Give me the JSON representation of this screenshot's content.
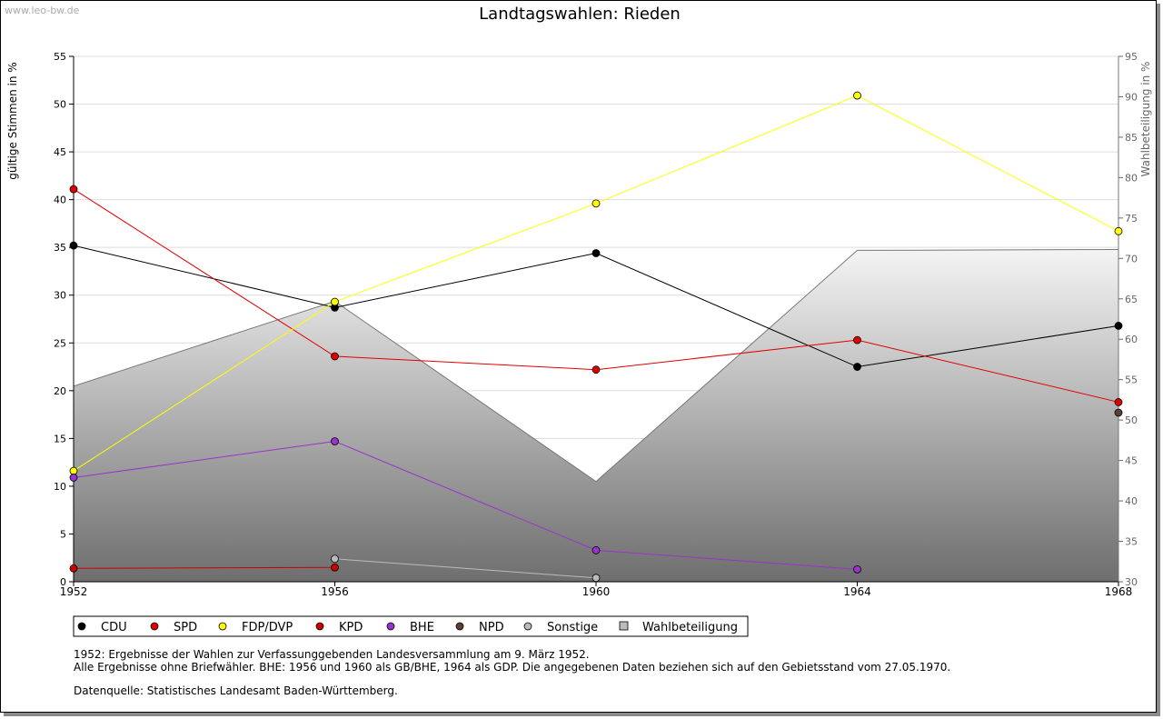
{
  "watermark": "www.leo-bw.de",
  "chart_data": {
    "type": "line",
    "title": "Landtagswahlen: Rieden",
    "ylabel": "gültige Stimmen in %",
    "y2label": "Wahlbeteiligung in %",
    "x": [
      1952,
      1956,
      1960,
      1964,
      1968
    ],
    "xlim": [
      1952,
      1968
    ],
    "ylim": [
      0,
      55
    ],
    "y2lim": [
      30,
      95
    ],
    "yticks": [
      0,
      5,
      10,
      15,
      20,
      25,
      30,
      35,
      40,
      45,
      50,
      55
    ],
    "y2ticks": [
      30,
      35,
      40,
      45,
      50,
      55,
      60,
      65,
      70,
      75,
      80,
      85,
      90,
      95
    ],
    "series": [
      {
        "name": "CDU",
        "color": "#000000",
        "values": [
          35.2,
          28.7,
          34.4,
          22.5,
          26.8
        ]
      },
      {
        "name": "SPD",
        "color": "#e00000",
        "values": [
          41.1,
          23.6,
          22.2,
          25.3,
          18.8
        ]
      },
      {
        "name": "FDP/DVP",
        "color": "#ffff00",
        "values": [
          11.6,
          29.3,
          39.6,
          50.9,
          36.7
        ]
      },
      {
        "name": "KPD",
        "color": "#cc0000",
        "values": [
          1.4,
          1.5,
          null,
          null,
          null
        ]
      },
      {
        "name": "BHE",
        "color": "#9933cc",
        "values": [
          10.9,
          14.7,
          3.3,
          1.3,
          null
        ]
      },
      {
        "name": "NPD",
        "color": "#5c4033",
        "values": [
          null,
          null,
          null,
          null,
          17.7
        ]
      },
      {
        "name": "Sonstige",
        "color": "#bbbbbb",
        "values": [
          null,
          2.4,
          0.4,
          null,
          null
        ]
      }
    ],
    "turnout": {
      "name": "Wahlbeteiligung",
      "axis": "right",
      "values": [
        54.2,
        64.7,
        42.4,
        71.0,
        71.1
      ]
    },
    "legend_position": "bottom-left"
  },
  "notes": {
    "line1": "1952: Ergebnisse der Wahlen zur Verfassunggebenden Landesversammlung am 9. März 1952.",
    "line2": "Alle Ergebnisse ohne Briefwähler. BHE: 1956 und 1960 als GB/BHE, 1964 als GDP. Die angegebenen Daten beziehen sich auf den Gebietsstand vom 27.05.1970.",
    "source": "Datenquelle: Statistisches Landesamt Baden-Württemberg."
  }
}
